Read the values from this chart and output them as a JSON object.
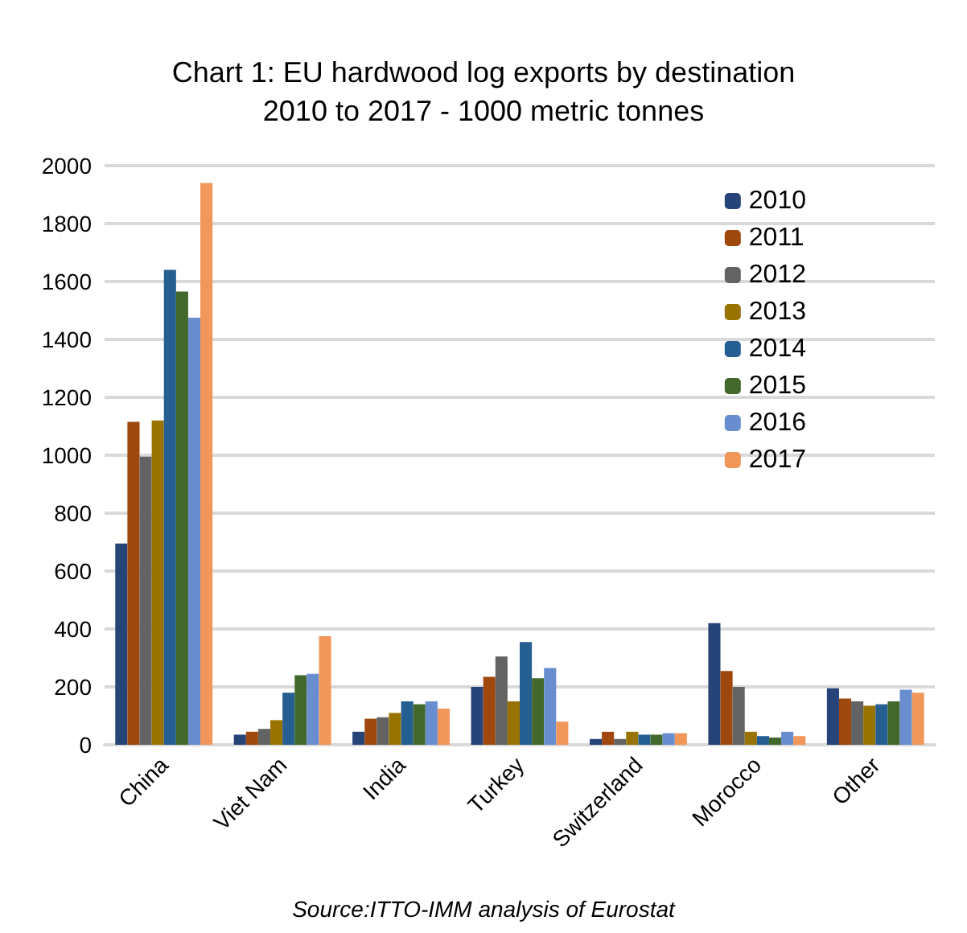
{
  "chart_data": {
    "type": "bar",
    "title": "Chart 1: EU hardwood log exports by destination\n2010 to 2017 - 1000 metric tonnes",
    "categories": [
      "China",
      "Viet Nam",
      "India",
      "Turkey",
      "Switzerland",
      "Morocco",
      "Other"
    ],
    "series": [
      {
        "name": "2010",
        "color": "#264478",
        "values": [
          695,
          35,
          45,
          200,
          20,
          420,
          195
        ]
      },
      {
        "name": "2011",
        "color": "#9e480e",
        "values": [
          1115,
          45,
          90,
          235,
          45,
          255,
          160
        ]
      },
      {
        "name": "2012",
        "color": "#636363",
        "values": [
          995,
          55,
          95,
          305,
          20,
          200,
          150
        ]
      },
      {
        "name": "2013",
        "color": "#997300",
        "values": [
          1120,
          85,
          110,
          150,
          45,
          45,
          135
        ]
      },
      {
        "name": "2014",
        "color": "#255e91",
        "values": [
          1640,
          180,
          150,
          355,
          35,
          30,
          140
        ]
      },
      {
        "name": "2015",
        "color": "#43682b",
        "values": [
          1565,
          240,
          140,
          230,
          35,
          25,
          150
        ]
      },
      {
        "name": "2016",
        "color": "#698ed0",
        "values": [
          1475,
          245,
          150,
          265,
          40,
          45,
          190
        ]
      },
      {
        "name": "2017",
        "color": "#f1975a",
        "values": [
          1940,
          375,
          125,
          80,
          40,
          30,
          180
        ]
      }
    ],
    "ylim": [
      0,
      2000
    ],
    "yticks": [
      0,
      200,
      400,
      600,
      800,
      1000,
      1200,
      1400,
      1600,
      1800,
      2000
    ],
    "grid": "y",
    "legend": "top right",
    "annotations": [
      "Source:ITTO-IMM analysis of Eurostat"
    ]
  }
}
